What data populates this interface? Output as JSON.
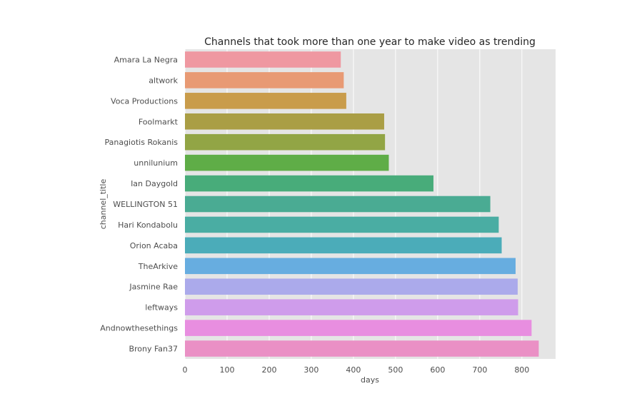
{
  "chart_data": {
    "type": "bar",
    "orientation": "horizontal",
    "title": "Channels that took more than one year to make video as trending",
    "xlabel": "days",
    "ylabel": "channel_title",
    "xlim": [
      0,
      880
    ],
    "xticks": [
      0,
      100,
      200,
      300,
      400,
      500,
      600,
      700,
      800
    ],
    "grid": true,
    "legend": "none",
    "background": "#e5e5e5",
    "categories": [
      "Amara La Negra",
      "altwork",
      "Voca Productions",
      "Foolmarkt",
      "Panagiotis Rokanis",
      "unnilunium",
      "Ian Daygold",
      "WELLINGTON 51",
      "Hari Kondabolu",
      "Orion Acaba",
      "TheArkive",
      "Jasmine Rae",
      "leftways",
      "Andnowthesethings",
      "Brony Fan37"
    ],
    "values": [
      370,
      377,
      383,
      473,
      475,
      484,
      590,
      725,
      745,
      752,
      785,
      790,
      791,
      823,
      840
    ],
    "colors": [
      "#ef98a1",
      "#e89a74",
      "#c99c4b",
      "#aa9e45",
      "#92a545",
      "#5fad47",
      "#48ac7a",
      "#4aab93",
      "#4aada3",
      "#4bacb9",
      "#67ade0",
      "#abaaeb",
      "#cf9ceb",
      "#e88ee0",
      "#ea90c5"
    ]
  }
}
